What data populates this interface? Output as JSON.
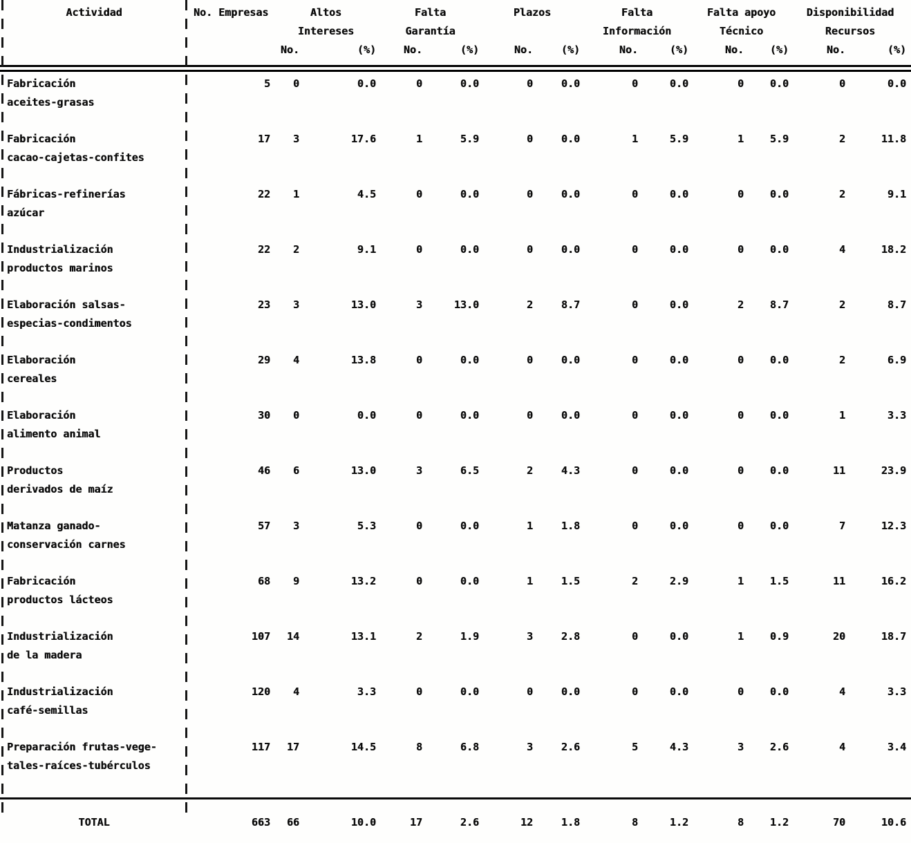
{
  "table": {
    "header": {
      "activity": "Actividad",
      "empresas": "No. Empresas",
      "no_label": "No.",
      "pct_label": "(%)",
      "groups": [
        {
          "line1": "Altos",
          "line2": "Intereses"
        },
        {
          "line1": "Falta",
          "line2": "Garantía"
        },
        {
          "line1": "Plazos",
          "line2": ""
        },
        {
          "line1": "Falta",
          "line2": "Información"
        },
        {
          "line1": "Falta apoyo",
          "line2": "Técnico"
        },
        {
          "line1": "Disponibilidad",
          "line2": "Recursos"
        }
      ]
    },
    "rows": [
      {
        "name1": "Fabricación",
        "name2": "aceites-grasas",
        "empresas": "5",
        "values": [
          "0",
          "0.0",
          "0",
          "0.0",
          "0",
          "0.0",
          "0",
          "0.0",
          "0",
          "0.0",
          "0",
          "0.0"
        ]
      },
      {
        "name1": "Fabricación",
        "name2": "cacao-cajetas-confites",
        "empresas": "17",
        "values": [
          "3",
          "17.6",
          "1",
          "5.9",
          "0",
          "0.0",
          "1",
          "5.9",
          "1",
          "5.9",
          "2",
          "11.8"
        ]
      },
      {
        "name1": "Fábricas-refinerías",
        "name2": "azúcar",
        "empresas": "22",
        "values": [
          "1",
          "4.5",
          "0",
          "0.0",
          "0",
          "0.0",
          "0",
          "0.0",
          "0",
          "0.0",
          "2",
          "9.1"
        ]
      },
      {
        "name1": "Industrialización",
        "name2": "productos marinos",
        "empresas": "22",
        "values": [
          "2",
          "9.1",
          "0",
          "0.0",
          "0",
          "0.0",
          "0",
          "0.0",
          "0",
          "0.0",
          "4",
          "18.2"
        ]
      },
      {
        "name1": "Elaboración salsas-",
        "name2": "especias-condimentos",
        "empresas": "23",
        "values": [
          "3",
          "13.0",
          "3",
          "13.0",
          "2",
          "8.7",
          "0",
          "0.0",
          "2",
          "8.7",
          "2",
          "8.7"
        ]
      },
      {
        "name1": "Elaboración",
        "name2": "cereales",
        "empresas": "29",
        "values": [
          "4",
          "13.8",
          "0",
          "0.0",
          "0",
          "0.0",
          "0",
          "0.0",
          "0",
          "0.0",
          "2",
          "6.9"
        ]
      },
      {
        "name1": "Elaboración",
        "name2": "alimento animal",
        "empresas": "30",
        "values": [
          "0",
          "0.0",
          "0",
          "0.0",
          "0",
          "0.0",
          "0",
          "0.0",
          "0",
          "0.0",
          "1",
          "3.3"
        ]
      },
      {
        "name1": "Productos",
        "name2": "derivados de maíz",
        "empresas": "46",
        "values": [
          "6",
          "13.0",
          "3",
          "6.5",
          "2",
          "4.3",
          "0",
          "0.0",
          "0",
          "0.0",
          "11",
          "23.9"
        ]
      },
      {
        "name1": "Matanza ganado-",
        "name2": "conservación carnes",
        "empresas": "57",
        "values": [
          "3",
          "5.3",
          "0",
          "0.0",
          "1",
          "1.8",
          "0",
          "0.0",
          "0",
          "0.0",
          "7",
          "12.3"
        ]
      },
      {
        "name1": "Fabricación",
        "name2": "productos lácteos",
        "empresas": "68",
        "values": [
          "9",
          "13.2",
          "0",
          "0.0",
          "1",
          "1.5",
          "2",
          "2.9",
          "1",
          "1.5",
          "11",
          "16.2"
        ]
      },
      {
        "name1": "Industrialización",
        "name2": "de la madera",
        "empresas": "107",
        "values": [
          "14",
          "13.1",
          "2",
          "1.9",
          "3",
          "2.8",
          "0",
          "0.0",
          "1",
          "0.9",
          "20",
          "18.7"
        ]
      },
      {
        "name1": "Industrialización",
        "name2": "café-semillas",
        "empresas": "120",
        "values": [
          "4",
          "3.3",
          "0",
          "0.0",
          "0",
          "0.0",
          "0",
          "0.0",
          "0",
          "0.0",
          "4",
          "3.3"
        ]
      },
      {
        "name1": "Preparación frutas-vege-",
        "name2": "tales-raíces-tubérculos",
        "empresas": "117",
        "values": [
          "17",
          "14.5",
          "8",
          "6.8",
          "3",
          "2.6",
          "5",
          "4.3",
          "3",
          "2.6",
          "4",
          "3.4"
        ]
      }
    ],
    "total": {
      "label": "TOTAL",
      "empresas": "663",
      "values": [
        "66",
        "10.0",
        "17",
        "2.6",
        "12",
        "1.8",
        "8",
        "1.2",
        "8",
        "1.2",
        "70",
        "10.6"
      ]
    }
  }
}
